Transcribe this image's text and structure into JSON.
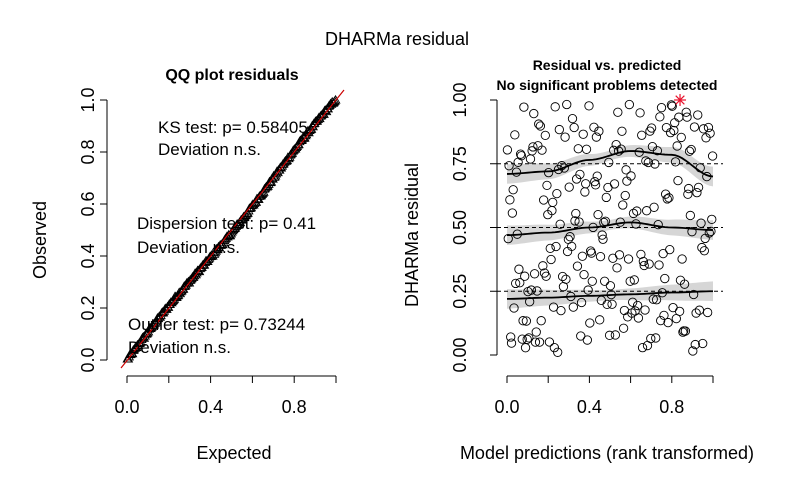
{
  "figure": {
    "title": "DHARMa residual"
  },
  "chart_data": [
    {
      "type": "scatter",
      "title": "QQ plot residuals",
      "xlabel": "Expected",
      "ylabel": "Observed",
      "xlim": [
        0,
        1
      ],
      "ylim": [
        0,
        1
      ],
      "x_ticks": [
        "0.0",
        "0.4",
        "0.8"
      ],
      "x_tick_values": [
        0,
        0.4,
        0.8
      ],
      "y_ticks": [
        "0.0",
        "0.2",
        "0.4",
        "0.6",
        "0.8",
        "1.0"
      ],
      "y_tick_values": [
        0,
        0.2,
        0.4,
        0.6,
        0.8,
        1.0
      ],
      "reference_line": {
        "from": [
          0,
          0
        ],
        "to": [
          1,
          1
        ],
        "color": "#cc0000"
      },
      "marker": "open-triangle",
      "annotations": [
        {
          "line1": "KS test: p= 0.58405",
          "line2": "Deviation  n.s."
        },
        {
          "line1": "Dispersion test: p= 0.41",
          "line2": "Deviation  n.s."
        },
        {
          "line1": "Outlier test: p= 0.73244",
          "line2": "Deviation  n.s."
        }
      ]
    },
    {
      "type": "scatter",
      "title": "Residual vs. predicted",
      "subtitle": "No significant problems detected",
      "xlabel": "Model predictions (rank transformed)",
      "ylabel": "DHARMa residual",
      "xlim": [
        0,
        1
      ],
      "ylim": [
        0,
        1
      ],
      "x_ticks": [
        "0.0",
        "0.4",
        "0.8"
      ],
      "x_tick_values": [
        0,
        0.4,
        0.8
      ],
      "y_ticks": [
        "0.00",
        "0.25",
        "0.50",
        "0.75",
        "1.00"
      ],
      "y_tick_values": [
        0,
        0.25,
        0.5,
        0.75,
        1.0
      ],
      "reference_lines_y": [
        0.25,
        0.5,
        0.75
      ],
      "marker": "open-circle",
      "outlier_color": "#e8122c",
      "outliers": [
        {
          "x": 0.84,
          "y": 1.0
        }
      ],
      "quantile_curves": [
        {
          "q": 0.25,
          "x": [
            0,
            0.2,
            0.4,
            0.6,
            0.8,
            1.0
          ],
          "y": [
            0.22,
            0.225,
            0.232,
            0.238,
            0.245,
            0.25
          ]
        },
        {
          "q": 0.5,
          "x": [
            0,
            0.2,
            0.4,
            0.6,
            0.8,
            1.0
          ],
          "y": [
            0.47,
            0.48,
            0.5,
            0.52,
            0.5,
            0.49
          ]
        },
        {
          "q": 0.75,
          "x": [
            0,
            0.2,
            0.4,
            0.6,
            0.8,
            1.0
          ],
          "y": [
            0.71,
            0.72,
            0.765,
            0.8,
            0.785,
            0.7
          ]
        }
      ],
      "band_half_width": 0.035
    }
  ]
}
